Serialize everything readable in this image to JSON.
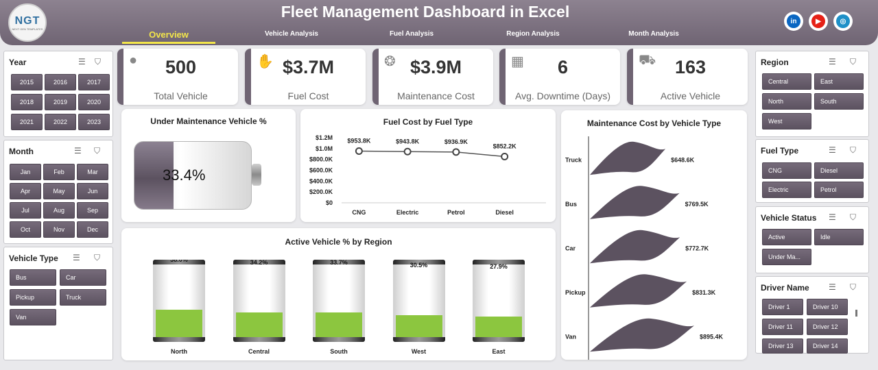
{
  "header": {
    "logo_text": "NGT",
    "logo_subtext": "NEXT GEN TEMPLATES",
    "title": "Fleet Management Dashboard in Excel",
    "nav": [
      "Overview",
      "Vehicle Analysis",
      "Fuel Analysis",
      "Region Analysis",
      "Month Analysis"
    ],
    "social": [
      {
        "name": "linkedin-icon",
        "text": "in",
        "color": "#0a66c2"
      },
      {
        "name": "youtube-icon",
        "text": "▶",
        "color": "#e62117"
      },
      {
        "name": "globe-icon",
        "text": "◎",
        "color": "#1e90c8"
      }
    ]
  },
  "slicers": {
    "year": {
      "title": "Year",
      "items": [
        "2015",
        "2016",
        "2017",
        "2018",
        "2019",
        "2020",
        "2021",
        "2022",
        "2023"
      ]
    },
    "month": {
      "title": "Month",
      "items": [
        "Jan",
        "Feb",
        "Mar",
        "Apr",
        "May",
        "Jun",
        "Jul",
        "Aug",
        "Sep",
        "Oct",
        "Nov",
        "Dec"
      ]
    },
    "vehicle_type": {
      "title": "Vehicle Type",
      "items": [
        "Bus",
        "Car",
        "Pickup",
        "Truck",
        "Van"
      ]
    },
    "region": {
      "title": "Region",
      "items": [
        "Central",
        "East",
        "North",
        "South",
        "West"
      ]
    },
    "fuel_type": {
      "title": "Fuel Type",
      "items": [
        "CNG",
        "Diesel",
        "Electric",
        "Petrol"
      ]
    },
    "vehicle_status": {
      "title": "Vehicle Status",
      "items": [
        "Active",
        "Idle",
        "Under Ma..."
      ]
    },
    "driver_name": {
      "title": "Driver Name",
      "items": [
        "Driver 1",
        "Driver 10",
        "Driver 11",
        "Driver 12",
        "Driver 13",
        "Driver 14"
      ]
    }
  },
  "kpis": [
    {
      "value": "500",
      "label": "Total Vehicle",
      "icon": "user-icon"
    },
    {
      "value": "$3.7M",
      "label": "Fuel Cost",
      "icon": "money-icon"
    },
    {
      "value": "$3.9M",
      "label": "Maintenance Cost",
      "icon": "coins-icon"
    },
    {
      "value": "6",
      "label": "Avg. Downtime (Days)",
      "icon": "calendar-icon"
    },
    {
      "value": "163",
      "label": "Active Vehicle",
      "icon": "car-icon"
    }
  ],
  "chart_data": [
    {
      "type": "bar",
      "title": "Under Maintenance Vehicle %",
      "categories": [
        "Under Maintenance"
      ],
      "values": [
        33.4
      ],
      "value_label": "33.4%",
      "ylim": [
        0,
        100
      ]
    },
    {
      "type": "line",
      "title": "Fuel Cost by Fuel Type",
      "categories": [
        "CNG",
        "Electric",
        "Petrol",
        "Diesel"
      ],
      "values": [
        953.8,
        943.8,
        936.9,
        852.2
      ],
      "data_labels": [
        "$953.8K",
        "$943.8K",
        "$936.9K",
        "$852.2K"
      ],
      "yticks": [
        "$0",
        "$200.0K",
        "$400.0K",
        "$600.0K",
        "$800.0K",
        "$1.0M",
        "$1.2M"
      ],
      "ylim": [
        0,
        1200
      ]
    },
    {
      "type": "bar",
      "title": "Maintenance Cost by Vehicle Type",
      "categories": [
        "Truck",
        "Bus",
        "Car",
        "Pickup",
        "Van"
      ],
      "values": [
        648.6,
        769.5,
        772.7,
        831.3,
        895.4
      ],
      "data_labels": [
        "$648.6K",
        "$769.5K",
        "$772.7K",
        "$831.3K",
        "$895.4K"
      ]
    },
    {
      "type": "bar",
      "title": "Active Vehicle % by Region",
      "categories": [
        "North",
        "Central",
        "South",
        "West",
        "East"
      ],
      "values": [
        38.0,
        34.2,
        33.7,
        30.5,
        27.9
      ],
      "data_labels": [
        "38.0%",
        "34.2%",
        "33.7%",
        "30.5%",
        "27.9%"
      ],
      "ylim": [
        0,
        100
      ]
    }
  ],
  "colors": {
    "accent": "#6f6473",
    "fill_green": "#8cc63f",
    "nav_active": "#f3e64a"
  }
}
